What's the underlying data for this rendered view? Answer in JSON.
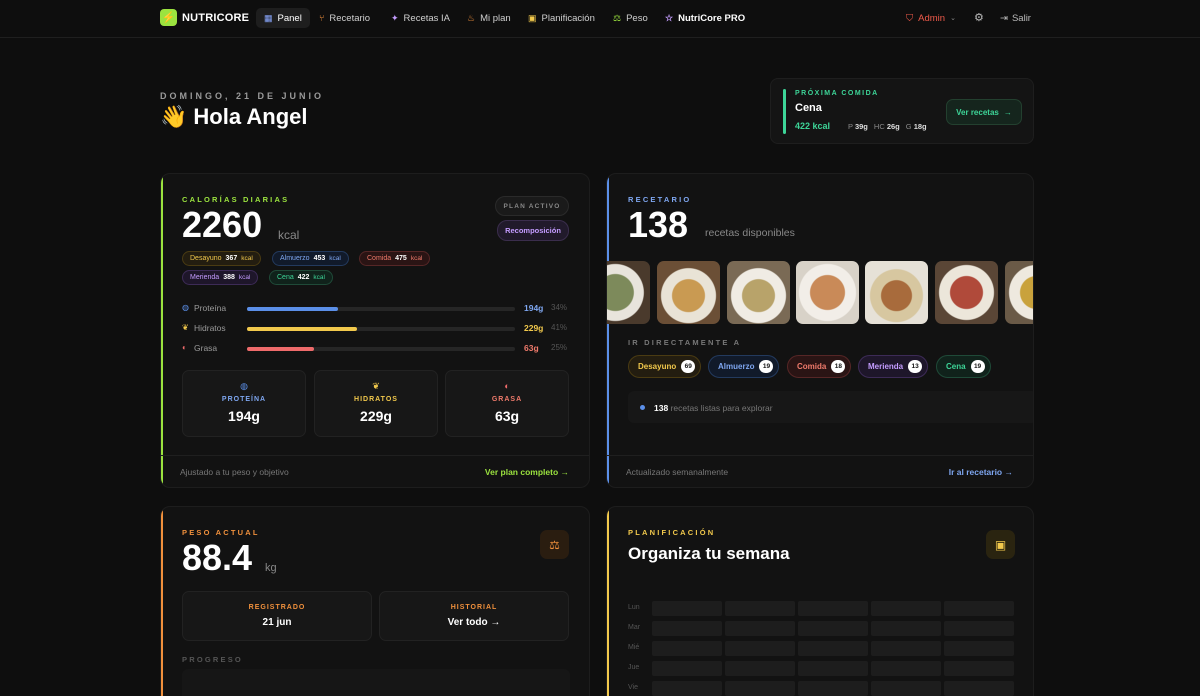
{
  "nav": {
    "brand": "NUTRICORE",
    "items": [
      {
        "label": "Panel",
        "icon": "grid-icon",
        "glyph": "▦"
      },
      {
        "label": "Recetario",
        "icon": "utensils-icon",
        "glyph": "🍴"
      },
      {
        "label": "Recetas IA",
        "icon": "sparkle-icon",
        "glyph": "✦"
      },
      {
        "label": "Mi plan",
        "icon": "flame-icon",
        "glyph": "♨"
      },
      {
        "label": "Planificación",
        "icon": "calendar-icon",
        "glyph": "▣"
      },
      {
        "label": "Peso",
        "icon": "scale-icon",
        "glyph": "⚖"
      },
      {
        "label": "NutriCore PRO",
        "icon": "star-icon",
        "glyph": "☆"
      }
    ],
    "admin": "Admin",
    "logout": "Salir"
  },
  "header": {
    "date": "DOMINGO, 21 DE JUNIO",
    "wave": "👋",
    "greeting": "Hola Angel"
  },
  "next_meal": {
    "label": "PRÓXIMA COMIDA",
    "name": "Cena",
    "kcal": "422 kcal",
    "p_label": "P",
    "p": "39g",
    "hc_label": "HC",
    "hc": "26g",
    "g_label": "G",
    "g": "18g",
    "button": "Ver recetas"
  },
  "calories": {
    "eyebrow": "CALORÍAS DIARIAS",
    "value": "2260",
    "unit": "kcal",
    "plan_label": "PLAN ACTIVO",
    "plan_name": "Recomposición",
    "meals": [
      {
        "name": "Desayuno",
        "kcal": "367",
        "unit": "kcal"
      },
      {
        "name": "Almuerzo",
        "kcal": "453",
        "unit": "kcal"
      },
      {
        "name": "Comida",
        "kcal": "475",
        "unit": "kcal"
      },
      {
        "name": "Merienda",
        "kcal": "388",
        "unit": "kcal"
      },
      {
        "name": "Cena",
        "kcal": "422",
        "unit": "kcal"
      }
    ],
    "macros": [
      {
        "name": "Proteína",
        "grams": "194g",
        "pct": "34%",
        "fraction": 0.34,
        "color": "#5b8fe8"
      },
      {
        "name": "Hidratos",
        "grams": "229g",
        "pct": "41%",
        "fraction": 0.41,
        "color": "#f2c94c"
      },
      {
        "name": "Grasa",
        "grams": "63g",
        "pct": "25%",
        "fraction": 0.25,
        "color": "#ef6b6b"
      }
    ],
    "boxes": [
      {
        "label": "PROTEÍNA",
        "value": "194g"
      },
      {
        "label": "HIDRATOS",
        "value": "229g"
      },
      {
        "label": "GRASA",
        "value": "63g"
      }
    ],
    "foot_left": "Ajustado a tu peso y objetivo",
    "foot_right": "Ver plan completo →"
  },
  "recetario": {
    "eyebrow": "RECETARIO",
    "count": "138",
    "unit": "recetas disponibles",
    "jump_label": "IR DIRECTAMENTE A",
    "chips": [
      {
        "name": "Desayuno",
        "count": "69"
      },
      {
        "name": "Almuerzo",
        "count": "19"
      },
      {
        "name": "Comida",
        "count": "18"
      },
      {
        "name": "Merienda",
        "count": "13"
      },
      {
        "name": "Cena",
        "count": "19"
      }
    ],
    "info_count": "138",
    "info_text": "recetas listas para explorar",
    "foot_left": "Actualizado semanalmente",
    "foot_right": "Ir al recetario →"
  },
  "peso": {
    "eyebrow": "PESO ACTUAL",
    "value": "88.4",
    "unit": "kg",
    "registered_label": "REGISTRADO",
    "registered_value": "21 jun",
    "history_label": "HISTORIAL",
    "history_value": "Ver todo →",
    "progress_label": "PROGRESO"
  },
  "planificacion": {
    "eyebrow": "PLANIFICACIÓN",
    "title": "Organiza tu semana",
    "days": [
      "Lun",
      "Mar",
      "Mié",
      "Jue",
      "Vie"
    ]
  },
  "colors": {
    "green": "#9be33f",
    "blue": "#5b8fe8",
    "orange": "#f0903c",
    "yellow": "#f2c94c"
  }
}
